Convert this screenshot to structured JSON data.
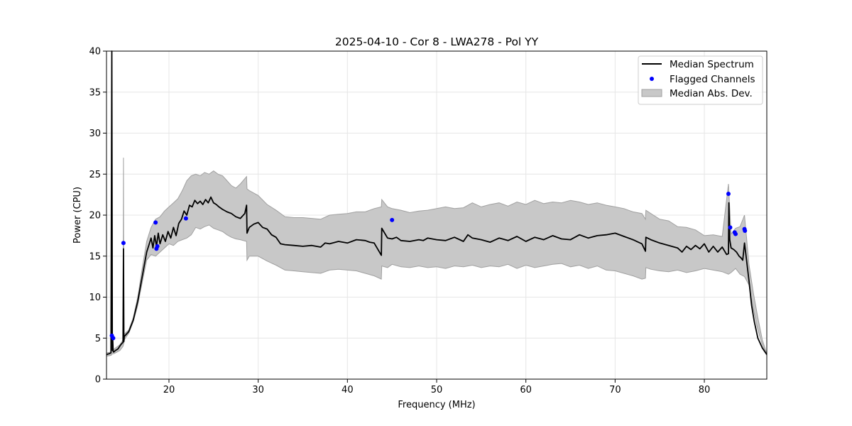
{
  "chart_data": {
    "type": "line",
    "title": "2025-04-10 - Cor 8 - LWA278 - Pol YY",
    "xlabel": "Frequency (MHz)",
    "ylabel": "Power (CPU)",
    "xlim": [
      13.0,
      87.0
    ],
    "ylim": [
      0,
      40
    ],
    "xticks": [
      20,
      30,
      40,
      50,
      60,
      70,
      80
    ],
    "yticks": [
      0,
      5,
      10,
      15,
      20,
      25,
      30,
      35,
      40
    ],
    "grid": true,
    "legend_position": "top-right",
    "legend": [
      "Median Spectrum",
      "Flagged Channels",
      "Median Abs. Dev."
    ],
    "colors": {
      "median": "#000000",
      "flagged": "#0000ff",
      "mad_fill": "#c8c8c8",
      "mad_edge": "#a0a0a0"
    },
    "series": [
      {
        "name": "Median Spectrum",
        "kind": "line",
        "x": [
          13.0,
          13.3,
          13.5,
          13.6,
          13.65,
          13.7,
          13.75,
          13.8,
          14.0,
          14.3,
          14.6,
          14.85,
          14.9,
          14.95,
          15.0,
          15.5,
          16.0,
          16.5,
          17.0,
          17.5,
          17.8,
          18.0,
          18.2,
          18.4,
          18.6,
          18.8,
          19.0,
          19.3,
          19.6,
          19.9,
          20.2,
          20.5,
          20.8,
          21.1,
          21.4,
          21.7,
          22.0,
          22.3,
          22.6,
          22.9,
          23.2,
          23.5,
          23.8,
          24.1,
          24.4,
          24.7,
          25.0,
          25.3,
          25.6,
          26.0,
          26.5,
          27.0,
          27.5,
          28.0,
          28.5,
          28.7,
          28.75,
          29.0,
          29.5,
          30.0,
          30.5,
          31.0,
          31.5,
          32.0,
          32.5,
          33.0,
          34.0,
          35.0,
          36.0,
          37.0,
          37.5,
          38.0,
          39.0,
          40.0,
          41.0,
          42.0,
          42.5,
          43.0,
          43.8,
          43.85,
          44.5,
          45.0,
          45.5,
          46.0,
          47.0,
          48.0,
          48.5,
          49.0,
          49.5,
          50.0,
          51.0,
          52.0,
          53.0,
          53.5,
          54.0,
          55.0,
          56.0,
          57.0,
          58.0,
          59.0,
          60.0,
          61.0,
          62.0,
          63.0,
          64.0,
          65.0,
          66.0,
          67.0,
          68.0,
          69.0,
          70.0,
          71.0,
          72.0,
          73.0,
          73.4,
          73.45,
          74.0,
          75.0,
          76.0,
          77.0,
          77.5,
          78.0,
          78.5,
          79.0,
          79.5,
          80.0,
          80.5,
          81.0,
          81.5,
          82.0,
          82.5,
          82.7,
          82.75,
          82.85,
          83.0,
          83.3,
          83.6,
          83.9,
          84.1,
          84.3,
          84.5,
          84.7,
          85.0,
          85.3,
          85.6,
          86.0,
          86.5,
          87.0
        ],
        "y": [
          3.0,
          3.1,
          3.2,
          40.0,
          3.5,
          4.8,
          3.4,
          3.3,
          3.5,
          3.7,
          4.2,
          4.5,
          15.9,
          4.6,
          5.2,
          5.8,
          7.2,
          9.5,
          12.5,
          15.5,
          16.5,
          17.2,
          16.0,
          17.5,
          16.2,
          17.8,
          16.5,
          17.6,
          16.8,
          18.0,
          17.2,
          18.5,
          17.5,
          19.0,
          19.5,
          20.5,
          20.0,
          21.2,
          21.0,
          21.8,
          21.4,
          21.7,
          21.3,
          21.9,
          21.5,
          22.2,
          21.5,
          21.3,
          21.0,
          20.7,
          20.4,
          20.2,
          19.8,
          19.6,
          20.2,
          21.2,
          17.8,
          18.5,
          18.9,
          19.1,
          18.5,
          18.3,
          17.6,
          17.3,
          16.5,
          16.4,
          16.3,
          16.2,
          16.3,
          16.1,
          16.6,
          16.5,
          16.8,
          16.6,
          17.0,
          16.9,
          16.7,
          16.6,
          15.1,
          18.4,
          17.2,
          17.1,
          17.3,
          16.9,
          16.8,
          17.0,
          16.9,
          17.2,
          17.1,
          17.0,
          16.9,
          17.3,
          16.8,
          17.6,
          17.2,
          17.0,
          16.7,
          17.2,
          16.9,
          17.4,
          16.8,
          17.3,
          17.0,
          17.5,
          17.1,
          17.0,
          17.6,
          17.2,
          17.5,
          17.6,
          17.8,
          17.4,
          17.0,
          16.5,
          15.6,
          17.3,
          17.0,
          16.6,
          16.3,
          16.0,
          15.5,
          16.2,
          15.8,
          16.3,
          15.9,
          16.5,
          15.5,
          16.2,
          15.5,
          16.1,
          15.2,
          15.3,
          21.5,
          17.0,
          16.0,
          15.8,
          15.5,
          15.0,
          14.8,
          14.5,
          16.6,
          14.8,
          12.0,
          9.0,
          7.0,
          5.0,
          3.8,
          3.0
        ]
      },
      {
        "name": "Flagged Channels",
        "kind": "scatter",
        "x": [
          13.6,
          13.75,
          14.9,
          18.5,
          18.6,
          18.7,
          21.9,
          45.0,
          82.7,
          82.9,
          83.4,
          83.5,
          84.5,
          84.55
        ],
        "y": [
          5.3,
          5.0,
          16.6,
          19.1,
          15.9,
          16.2,
          19.6,
          19.4,
          22.6,
          18.5,
          17.9,
          17.7,
          18.3,
          18.1
        ]
      },
      {
        "name": "Median Abs. Dev.",
        "kind": "band",
        "x": [
          13.0,
          13.5,
          13.6,
          13.65,
          13.8,
          14.0,
          14.5,
          14.85,
          14.9,
          14.95,
          15.0,
          15.5,
          16.0,
          16.5,
          17.0,
          17.5,
          18.0,
          18.5,
          19.0,
          19.5,
          20.0,
          20.5,
          21.0,
          21.5,
          22.0,
          22.5,
          23.0,
          23.5,
          24.0,
          24.5,
          25.0,
          25.5,
          26.0,
          26.5,
          27.0,
          27.5,
          28.0,
          28.7,
          28.75,
          29.0,
          30.0,
          31.0,
          32.0,
          33.0,
          34.0,
          35.0,
          36.0,
          37.0,
          38.0,
          39.0,
          40.0,
          41.0,
          42.0,
          43.0,
          43.8,
          43.85,
          44.5,
          45.0,
          46.0,
          47.0,
          48.0,
          49.0,
          50.0,
          51.0,
          52.0,
          53.0,
          54.0,
          55.0,
          56.0,
          57.0,
          58.0,
          59.0,
          60.0,
          61.0,
          62.0,
          63.0,
          64.0,
          65.0,
          66.0,
          67.0,
          68.0,
          69.0,
          70.0,
          71.0,
          72.0,
          73.0,
          73.4,
          73.45,
          74.0,
          75.0,
          76.0,
          77.0,
          78.0,
          79.0,
          80.0,
          81.0,
          82.0,
          82.7,
          83.0,
          83.5,
          84.0,
          84.5,
          85.0,
          85.5,
          86.0,
          86.5,
          87.0
        ],
        "upper": [
          3.2,
          3.3,
          6.5,
          3.8,
          3.6,
          3.8,
          4.2,
          4.8,
          27.0,
          5.0,
          5.5,
          6.0,
          7.5,
          10.0,
          13.5,
          16.8,
          18.5,
          19.5,
          19.8,
          20.5,
          21.0,
          21.5,
          22.0,
          23.0,
          24.2,
          24.8,
          25.0,
          24.8,
          25.2,
          25.0,
          25.4,
          25.0,
          24.8,
          24.2,
          23.6,
          23.3,
          23.8,
          24.7,
          23.2,
          23.0,
          22.4,
          21.3,
          20.6,
          19.8,
          19.7,
          19.7,
          19.6,
          19.5,
          20.0,
          20.1,
          20.2,
          20.4,
          20.4,
          20.8,
          21.0,
          21.9,
          21.0,
          20.8,
          20.6,
          20.3,
          20.5,
          20.6,
          20.8,
          21.0,
          20.8,
          20.9,
          21.5,
          21.0,
          21.3,
          21.5,
          21.1,
          21.6,
          21.3,
          21.8,
          21.4,
          21.6,
          21.5,
          21.8,
          21.6,
          21.3,
          21.5,
          21.2,
          21.0,
          20.8,
          20.4,
          20.2,
          19.5,
          20.6,
          20.2,
          19.5,
          19.3,
          18.6,
          18.5,
          18.2,
          17.5,
          17.6,
          17.4,
          23.8,
          17.7,
          18.4,
          18.6,
          20.0,
          14.0,
          10.5,
          7.5,
          4.8,
          3.1
        ],
        "lower": [
          2.8,
          2.9,
          3.0,
          3.1,
          3.1,
          3.2,
          3.5,
          4.0,
          4.2,
          4.4,
          4.8,
          5.6,
          7.0,
          9.0,
          11.8,
          14.5,
          15.2,
          15.0,
          15.5,
          16.0,
          16.5,
          16.3,
          16.8,
          17.0,
          17.2,
          17.6,
          18.5,
          18.3,
          18.6,
          18.8,
          18.4,
          18.2,
          18.0,
          17.6,
          17.3,
          17.1,
          17.0,
          16.8,
          14.5,
          15.0,
          15.0,
          14.4,
          13.9,
          13.3,
          13.2,
          13.1,
          13.0,
          12.9,
          13.3,
          13.4,
          13.3,
          13.2,
          12.9,
          12.6,
          12.2,
          13.8,
          13.6,
          14.0,
          13.7,
          13.6,
          13.8,
          13.6,
          13.7,
          13.5,
          13.8,
          13.7,
          13.9,
          13.6,
          13.8,
          13.7,
          14.0,
          13.5,
          13.9,
          13.6,
          13.8,
          14.0,
          14.1,
          13.7,
          13.9,
          13.5,
          13.8,
          13.3,
          13.2,
          12.9,
          12.6,
          12.2,
          12.3,
          13.6,
          13.4,
          13.2,
          13.1,
          13.3,
          13.0,
          13.2,
          13.5,
          13.3,
          13.1,
          12.8,
          13.0,
          13.5,
          12.8,
          12.5,
          11.5,
          8.5,
          6.0,
          4.2,
          2.9
        ]
      }
    ]
  }
}
